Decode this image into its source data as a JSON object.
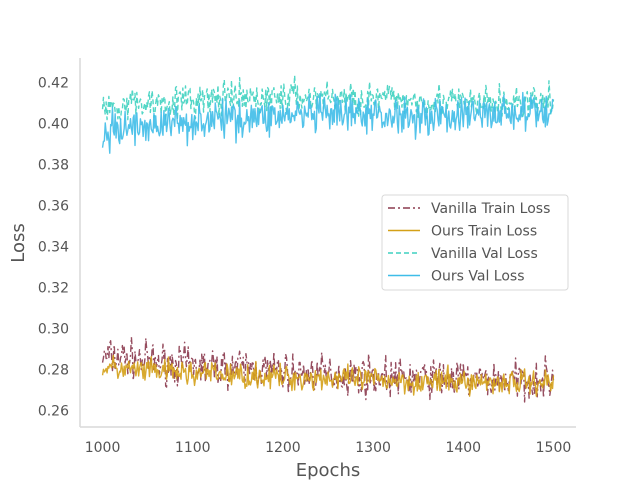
{
  "chart_data": {
    "type": "line",
    "title": "",
    "xlabel": "Epochs",
    "ylabel": "Loss",
    "xlim": [
      975,
      1525
    ],
    "ylim": [
      0.252,
      0.432
    ],
    "x_ticks": [
      1000,
      1100,
      1200,
      1300,
      1400,
      1500
    ],
    "y_ticks": [
      0.26,
      0.28,
      0.3,
      0.32,
      0.34,
      0.36,
      0.38,
      0.4,
      0.42
    ],
    "x_tick_labels": [
      "1000",
      "1100",
      "1200",
      "1300",
      "1400",
      "1500"
    ],
    "y_tick_labels": [
      "0.26",
      "0.28",
      "0.30",
      "0.32",
      "0.34",
      "0.36",
      "0.38",
      "0.40",
      "0.42"
    ],
    "grid": false,
    "legend_position": "center-right",
    "series": [
      {
        "name": "Vanilla Train Loss",
        "color": "#8b3a4e",
        "linestyle": "dashdot",
        "x": [
          1000,
          1025,
          1050,
          1075,
          1100,
          1125,
          1150,
          1175,
          1200,
          1225,
          1250,
          1275,
          1300,
          1325,
          1350,
          1375,
          1400,
          1425,
          1450,
          1475,
          1500
        ],
        "y": [
          0.286,
          0.286,
          0.284,
          0.283,
          0.282,
          0.281,
          0.281,
          0.28,
          0.279,
          0.278,
          0.278,
          0.277,
          0.277,
          0.276,
          0.276,
          0.276,
          0.275,
          0.275,
          0.275,
          0.275,
          0.275
        ]
      },
      {
        "name": "Ours Train Loss",
        "color": "#d4a017",
        "linestyle": "solid",
        "x": [
          1000,
          1025,
          1050,
          1075,
          1100,
          1125,
          1150,
          1175,
          1200,
          1225,
          1250,
          1275,
          1300,
          1325,
          1350,
          1375,
          1400,
          1425,
          1450,
          1475,
          1500
        ],
        "y": [
          0.281,
          0.28,
          0.279,
          0.279,
          0.278,
          0.278,
          0.277,
          0.277,
          0.276,
          0.276,
          0.276,
          0.275,
          0.275,
          0.275,
          0.274,
          0.274,
          0.274,
          0.274,
          0.274,
          0.274,
          0.274
        ]
      },
      {
        "name": "Vanilla Val Loss",
        "color": "#3fd1c0",
        "linestyle": "dashed",
        "x": [
          1000,
          1025,
          1050,
          1075,
          1100,
          1125,
          1150,
          1175,
          1200,
          1225,
          1250,
          1275,
          1300,
          1325,
          1350,
          1375,
          1400,
          1425,
          1450,
          1475,
          1500
        ],
        "y": [
          0.407,
          0.41,
          0.41,
          0.411,
          0.411,
          0.412,
          0.412,
          0.412,
          0.413,
          0.413,
          0.413,
          0.412,
          0.412,
          0.412,
          0.411,
          0.411,
          0.41,
          0.41,
          0.41,
          0.41,
          0.41
        ]
      },
      {
        "name": "Ours Val Loss",
        "color": "#3fbde8",
        "linestyle": "solid",
        "x": [
          1000,
          1025,
          1050,
          1075,
          1100,
          1125,
          1150,
          1175,
          1200,
          1225,
          1250,
          1275,
          1300,
          1325,
          1350,
          1375,
          1400,
          1425,
          1450,
          1475,
          1500
        ],
        "y": [
          0.394,
          0.398,
          0.399,
          0.4,
          0.401,
          0.402,
          0.403,
          0.403,
          0.404,
          0.404,
          0.404,
          0.404,
          0.404,
          0.404,
          0.404,
          0.404,
          0.404,
          0.405,
          0.405,
          0.405,
          0.405
        ]
      }
    ]
  }
}
